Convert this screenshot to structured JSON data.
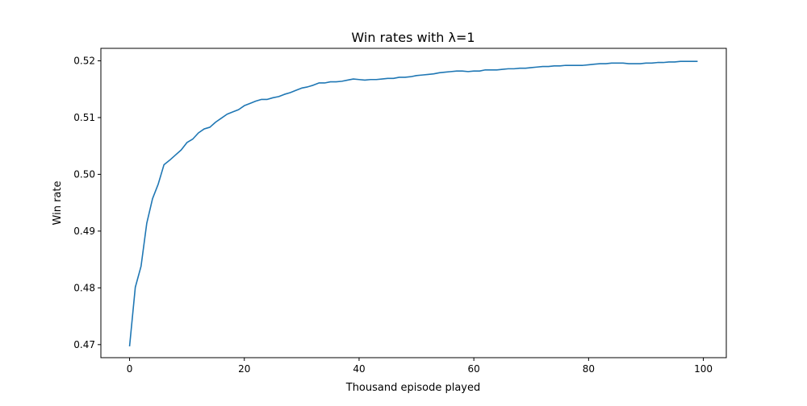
{
  "chart_data": {
    "type": "line",
    "title": "Win rates with λ=1",
    "xlabel": "Thousand episode played",
    "ylabel": "Win rate",
    "xlim": [
      -5,
      104
    ],
    "ylim": [
      0.4677,
      0.5222
    ],
    "x_ticks": [
      0,
      20,
      40,
      60,
      80,
      100
    ],
    "x_tick_labels": [
      "0",
      "20",
      "40",
      "60",
      "80",
      "100"
    ],
    "y_ticks": [
      0.47,
      0.48,
      0.49,
      0.5,
      0.51,
      0.52
    ],
    "y_tick_labels": [
      "0.47",
      "0.48",
      "0.49",
      "0.50",
      "0.51",
      "0.52"
    ],
    "grid": false,
    "series": [
      {
        "color": "#1f77b4",
        "x": [
          0,
          1,
          2,
          3,
          4,
          5,
          6,
          7,
          8,
          9,
          10,
          11,
          12,
          13,
          14,
          15,
          16,
          17,
          18,
          19,
          20,
          21,
          22,
          23,
          24,
          25,
          26,
          27,
          28,
          29,
          30,
          31,
          32,
          33,
          34,
          35,
          36,
          37,
          38,
          39,
          40,
          41,
          42,
          43,
          44,
          45,
          46,
          47,
          48,
          49,
          50,
          51,
          52,
          53,
          54,
          55,
          56,
          57,
          58,
          59,
          60,
          61,
          62,
          63,
          64,
          65,
          66,
          67,
          68,
          69,
          70,
          71,
          72,
          73,
          74,
          75,
          76,
          77,
          78,
          79,
          80,
          81,
          82,
          83,
          84,
          85,
          86,
          87,
          88,
          89,
          90,
          91,
          92,
          93,
          94,
          95,
          96,
          97,
          98,
          99
        ],
        "y": [
          0.4697,
          0.4801,
          0.4838,
          0.4914,
          0.4957,
          0.4983,
          0.5017,
          0.5025,
          0.5034,
          0.5043,
          0.5056,
          0.5062,
          0.5073,
          0.508,
          0.5083,
          0.5092,
          0.5099,
          0.5106,
          0.511,
          0.5114,
          0.5121,
          0.5125,
          0.5129,
          0.5132,
          0.5132,
          0.5135,
          0.5137,
          0.5141,
          0.5144,
          0.5148,
          0.5152,
          0.5154,
          0.5157,
          0.5161,
          0.5161,
          0.5163,
          0.5163,
          0.5164,
          0.5166,
          0.5168,
          0.5167,
          0.5166,
          0.5167,
          0.5167,
          0.5168,
          0.5169,
          0.5169,
          0.5171,
          0.5171,
          0.5172,
          0.5174,
          0.5175,
          0.5176,
          0.5177,
          0.5179,
          0.518,
          0.5181,
          0.5182,
          0.5182,
          0.5181,
          0.5182,
          0.5182,
          0.5184,
          0.5184,
          0.5184,
          0.5185,
          0.5186,
          0.5186,
          0.5187,
          0.5187,
          0.5188,
          0.5189,
          0.519,
          0.519,
          0.5191,
          0.5191,
          0.5192,
          0.5192,
          0.5192,
          0.5192,
          0.5193,
          0.5194,
          0.5195,
          0.5195,
          0.5196,
          0.5196,
          0.5196,
          0.5195,
          0.5195,
          0.5195,
          0.5196,
          0.5196,
          0.5197,
          0.5197,
          0.5198,
          0.5198,
          0.5199,
          0.5199,
          0.5199,
          0.5199
        ]
      }
    ]
  }
}
